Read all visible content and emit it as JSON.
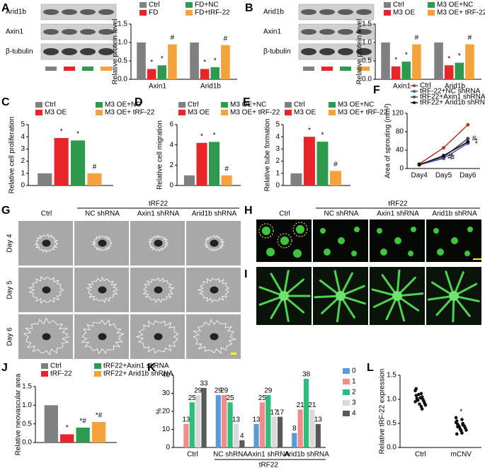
{
  "panel_labels": [
    "A",
    "B",
    "C",
    "D",
    "E",
    "F",
    "G",
    "H",
    "I",
    "J",
    "K",
    "L"
  ],
  "blots": [
    {
      "rows": [
        "Arid1b",
        "Axin1",
        "β-tubulin"
      ]
    },
    {
      "rows": [
        "Arid1b",
        "Axin1",
        "β-tubulin"
      ]
    }
  ],
  "sprouting": {
    "group": "tRF22",
    "columns": [
      "Ctrl",
      "NC shRNA",
      "Axin1 shRNA",
      "Arid1b shRNA"
    ],
    "rows": [
      "Day 4",
      "Day 5",
      "Day 6"
    ]
  },
  "fluorescence": {
    "group": "tRF22",
    "columns": [
      "Ctrl",
      "NC shRNA",
      "Axin1 shRNA",
      "Arid1b shRNA"
    ]
  },
  "chart_data": [
    {
      "type": "bar",
      "categories": [
        "Axin1",
        "Arid1b"
      ],
      "ylabel": "Relative protein level",
      "ylim": [
        0,
        1.5
      ],
      "yticks": [
        {
          "value": 0,
          "label": "0.0"
        },
        0.5,
        {
          "value": 1,
          "label": "1.0"
        },
        1.5
      ],
      "legend": "top",
      "series": [
        {
          "name": "Ctrl",
          "color": "#808080",
          "values": [
            1.0,
            1.0
          ]
        },
        {
          "name": "FD",
          "color": "#e8262a",
          "values": [
            0.28,
            0.28
          ],
          "sig": [
            "*",
            "*"
          ]
        },
        {
          "name": "FD+NC",
          "color": "#2e9a4e",
          "values": [
            0.38,
            0.33
          ],
          "sig": [
            "*",
            "*"
          ]
        },
        {
          "name": "FD+tRF-22",
          "color": "#f5a23c",
          "values": [
            0.95,
            0.93
          ],
          "sig": [
            "#",
            "#"
          ]
        }
      ]
    },
    {
      "type": "bar",
      "categories": [
        "Axin1",
        "Arid1b"
      ],
      "ylabel": "Relative protein level",
      "ylim": [
        0,
        1.5
      ],
      "yticks": [
        {
          "value": 0,
          "label": "0.0"
        },
        0.5,
        {
          "value": 1,
          "label": "1.0"
        },
        1.5
      ],
      "legend": "top",
      "series": [
        {
          "name": "Ctrl",
          "color": "#808080",
          "values": [
            1.0,
            1.0
          ]
        },
        {
          "name": "M3 OE",
          "color": "#e8262a",
          "values": [
            0.35,
            0.38
          ],
          "sig": [
            "*",
            "*"
          ]
        },
        {
          "name": "M3 OE+NC",
          "color": "#2e9a4e",
          "values": [
            0.48,
            0.45
          ],
          "sig": [
            "*",
            "*"
          ]
        },
        {
          "name": "M3 OE+ tRF-22",
          "color": "#f5a23c",
          "values": [
            0.95,
            0.95
          ],
          "sig": [
            "#",
            "#"
          ]
        }
      ]
    },
    {
      "type": "bar",
      "categories": [
        null
      ],
      "ylabel": "Relative cell proliferation",
      "ylim": [
        0,
        5
      ],
      "yticks": [
        0,
        1,
        2,
        3,
        4,
        5
      ],
      "legend": "top",
      "series": [
        {
          "name": "Ctrl",
          "color": "#808080",
          "values": [
            1.0
          ]
        },
        {
          "name": "M3 OE",
          "color": "#e8262a",
          "values": [
            3.9
          ],
          "sig": [
            "*"
          ]
        },
        {
          "name": "M3 OE+NC",
          "color": "#2e9a4e",
          "values": [
            3.7
          ],
          "sig": [
            "*"
          ]
        },
        {
          "name": "M3 OE+ tRF-22",
          "color": "#f5a23c",
          "values": [
            1.0
          ],
          "sig": [
            "#"
          ]
        }
      ]
    },
    {
      "type": "bar",
      "categories": [
        null
      ],
      "ylabel": "Relative cell migration",
      "ylim": [
        0,
        6
      ],
      "yticks": [
        0,
        2,
        4,
        6
      ],
      "legend": "top",
      "series": [
        {
          "name": "Ctrl",
          "color": "#808080",
          "values": [
            1.0
          ]
        },
        {
          "name": "M3 OE",
          "color": "#e8262a",
          "values": [
            4.2
          ],
          "sig": [
            "*"
          ]
        },
        {
          "name": "M3 OE+NC",
          "color": "#2e9a4e",
          "values": [
            4.3
          ],
          "sig": [
            "*"
          ]
        },
        {
          "name": "M3 OE+ tRF-22",
          "color": "#f5a23c",
          "values": [
            1.0
          ],
          "sig": [
            "#"
          ]
        }
      ]
    },
    {
      "type": "bar",
      "categories": [
        null
      ],
      "ylabel": "Relative tube formation",
      "ylim": [
        0,
        5
      ],
      "yticks": [
        0,
        1,
        2,
        3,
        4,
        5
      ],
      "legend": "top",
      "series": [
        {
          "name": "Ctrl",
          "color": "#808080",
          "values": [
            1.0
          ]
        },
        {
          "name": "M3 OE",
          "color": "#e8262a",
          "values": [
            4.0
          ],
          "sig": [
            "*"
          ]
        },
        {
          "name": "M3 OE+NC",
          "color": "#2e9a4e",
          "values": [
            3.6
          ],
          "sig": [
            "*"
          ]
        },
        {
          "name": "M3 OE+ tRF-22",
          "color": "#f5a23c",
          "values": [
            1.2
          ],
          "sig": [
            "#"
          ]
        }
      ]
    },
    {
      "type": "line",
      "categories": [
        "Day4",
        "Day5",
        "Day6"
      ],
      "ylabel": "Area of sprouting (mm²)",
      "ylim": [
        0,
        120
      ],
      "yticks": [
        0,
        40,
        80,
        120
      ],
      "legend": "top",
      "series": [
        {
          "name": "Ctrl",
          "color": "#b5392b",
          "values": [
            10,
            45,
            95
          ]
        },
        {
          "name": "tRF-22+NC shRNA",
          "color": "#3c5aa6",
          "values": [
            8,
            22,
            55
          ],
          "sig": [
            null,
            "*",
            "*"
          ]
        },
        {
          "name": "tRF22+Axin1 shRNA",
          "color": "#5a3a6e",
          "values": [
            9,
            25,
            65
          ],
          "sig": [
            null,
            "#",
            "#"
          ]
        },
        {
          "name": "tRF22+ Arid1b shRNA",
          "color": "#111111",
          "values": [
            8,
            28,
            58
          ],
          "sig": [
            null,
            "#",
            "*"
          ]
        }
      ]
    },
    {
      "type": "bar",
      "categories": [
        null
      ],
      "ylabel": "Relative neovascular area",
      "ylim": [
        0,
        1.5
      ],
      "yticks": [
        {
          "value": 0,
          "label": "0.0"
        },
        0.5,
        {
          "value": 1,
          "label": "1.0"
        },
        1.5
      ],
      "legend": "top",
      "series": [
        {
          "name": "Ctrl",
          "color": "#808080",
          "values": [
            1.0
          ]
        },
        {
          "name": "tRF-22",
          "color": "#e8262a",
          "values": [
            0.22
          ],
          "sig": [
            "*"
          ]
        },
        {
          "name": "tRF22+Axin1 shRNA",
          "color": "#2e9a4e",
          "values": [
            0.4
          ],
          "sig": [
            "*#"
          ]
        },
        {
          "name": "tRF22+ Arid1b shRNA",
          "color": "#f5a23c",
          "values": [
            0.55
          ],
          "sig": [
            "*#"
          ]
        }
      ]
    },
    {
      "type": "bar",
      "categories": [
        "Ctrl",
        "NC shRNA",
        "Axin1 shRNA",
        "Arid1b shRNA"
      ],
      "xgroup": "tRF22",
      "ylabel": "%",
      "ylim": [
        0,
        40
      ],
      "yticks": [
        0,
        10,
        20,
        30,
        40
      ],
      "legend": "right",
      "data_labels": true,
      "series": [
        {
          "name": "0",
          "color": "#5b9bd5",
          "values": [
            null,
            29,
            13,
            8
          ]
        },
        {
          "name": "1",
          "color": "#f28b8b",
          "values": [
            13,
            29,
            25,
            21
          ]
        },
        {
          "name": "2",
          "color": "#2bbf7b",
          "values": [
            25,
            25,
            29,
            38
          ]
        },
        {
          "name": "3",
          "color": "#d9d9d9",
          "values": [
            29,
            13,
            17,
            21
          ]
        },
        {
          "name": "4",
          "color": "#595959",
          "values": [
            33,
            4,
            17,
            13
          ]
        }
      ]
    },
    {
      "type": "strip",
      "categories": [
        "Ctrl",
        "mCNV"
      ],
      "ylabel": "Relative tRF-22 expression",
      "ylim": [
        0,
        1.5
      ],
      "yticks": [
        {
          "value": 0,
          "label": "0.0"
        },
        0.5,
        {
          "value": 1,
          "label": "1.0"
        },
        1.5
      ],
      "sig": [
        null,
        "*"
      ],
      "values": [
        [
          1.18,
          1.12,
          1.08,
          1.05,
          1.02,
          1.0,
          0.98,
          0.96,
          1.1,
          0.92,
          0.9,
          0.88,
          1.03,
          0.95,
          0.85,
          1.22,
          0.8,
          1.0
        ],
        [
          0.62,
          0.58,
          0.55,
          0.5,
          0.48,
          0.46,
          0.45,
          0.44,
          0.42,
          0.4,
          0.38,
          0.36,
          0.35,
          0.52,
          0.3,
          0.28,
          0.47,
          0.43
        ]
      ]
    }
  ]
}
